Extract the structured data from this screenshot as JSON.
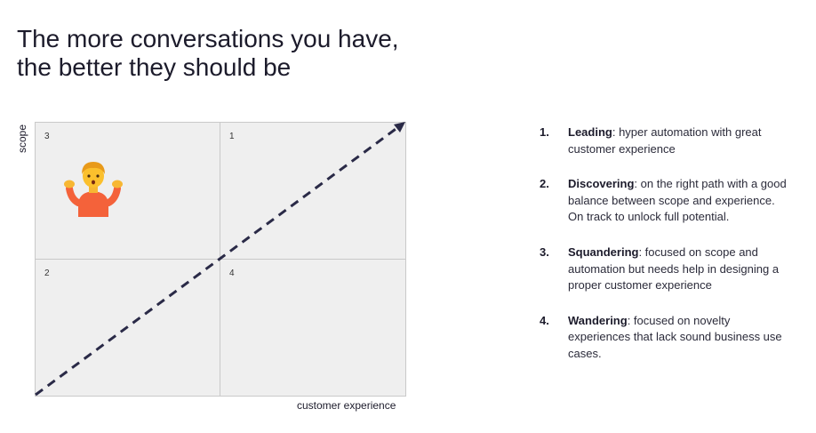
{
  "title": {
    "line1": "The more conversations you have,",
    "line2": "the better they should be"
  },
  "axes": {
    "y_label": "scope",
    "x_label": "customer experience"
  },
  "quadrants": {
    "top_left": "3",
    "top_right": "1",
    "bottom_left": "2",
    "bottom_right": "4"
  },
  "diagonal": {
    "style": "dashed-arrow",
    "color": "#2a2a47"
  },
  "emoji": {
    "icon": "shrugging-person-emoji",
    "quadrant": "3"
  },
  "legend_items": [
    {
      "number": "1.",
      "term": "Leading",
      "text": ": hyper automation with great customer experience"
    },
    {
      "number": "2.",
      "term": "Discovering",
      "text": ": on the right path with a good balance between scope and experience. On track to unlock full potential."
    },
    {
      "number": "3.",
      "term": "Squandering",
      "text": ": focused on scope and automation but needs help in designing a proper customer experience"
    },
    {
      "number": "4.",
      "term": "Wandering",
      "text": ": focused on novelty experiences that lack sound business use cases."
    }
  ],
  "colors": {
    "quadrant_fill": "#efefef",
    "quadrant_border": "#c9c9c9",
    "text": "#1c1b2b"
  }
}
